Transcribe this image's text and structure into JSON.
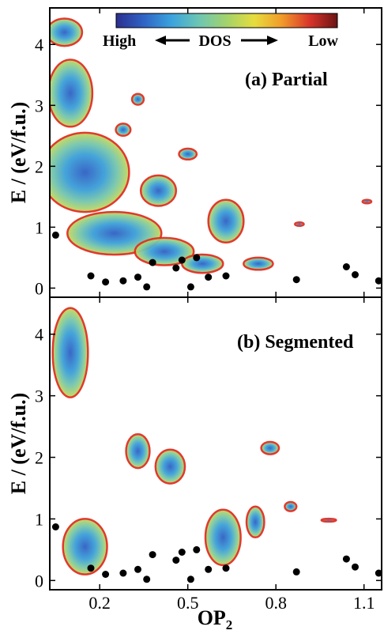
{
  "chart_data": {
    "type": "heatmap",
    "colorbar": {
      "high_label": "High",
      "mid_label": "DOS",
      "low_label": "Low",
      "colors": [
        "#2b2f8f",
        "#2f64c6",
        "#3aa3dd",
        "#6dc6b3",
        "#a4d36b",
        "#e6dd3d",
        "#f19a2a",
        "#d8342a",
        "#6b1414"
      ]
    },
    "xlabel_main": "OP",
    "xlabel_sub": "2",
    "xticks": [
      0.2,
      0.5,
      0.8,
      1.1
    ],
    "xlim": [
      0.03,
      1.16
    ],
    "panels": [
      {
        "id": "a",
        "title": "(a) Partial",
        "ylabel": "E / (eV/f.u.)",
        "yticks": [
          0,
          1,
          2,
          3,
          4
        ],
        "ylim": [
          -0.15,
          4.6
        ],
        "points": [
          [
            0.05,
            0.87
          ],
          [
            0.17,
            0.2
          ],
          [
            0.22,
            0.1
          ],
          [
            0.28,
            0.12
          ],
          [
            0.33,
            0.18
          ],
          [
            0.36,
            0.02
          ],
          [
            0.38,
            0.42
          ],
          [
            0.46,
            0.33
          ],
          [
            0.48,
            0.46
          ],
          [
            0.51,
            0.02
          ],
          [
            0.53,
            0.5
          ],
          [
            0.57,
            0.18
          ],
          [
            0.63,
            0.2
          ],
          [
            0.87,
            0.14
          ],
          [
            1.04,
            0.35
          ],
          [
            1.07,
            0.22
          ],
          [
            1.15,
            0.12
          ]
        ]
      },
      {
        "id": "b",
        "title": "(b) Segmented",
        "ylabel": "E / (eV/f.u.)",
        "yticks": [
          0,
          1,
          2,
          3,
          4
        ],
        "ylim": [
          -0.15,
          4.6
        ],
        "points": [
          [
            0.05,
            0.87
          ],
          [
            0.17,
            0.2
          ],
          [
            0.22,
            0.1
          ],
          [
            0.28,
            0.12
          ],
          [
            0.33,
            0.18
          ],
          [
            0.36,
            0.02
          ],
          [
            0.38,
            0.42
          ],
          [
            0.46,
            0.33
          ],
          [
            0.48,
            0.46
          ],
          [
            0.51,
            0.02
          ],
          [
            0.53,
            0.5
          ],
          [
            0.57,
            0.18
          ],
          [
            0.63,
            0.2
          ],
          [
            0.87,
            0.14
          ],
          [
            1.04,
            0.35
          ],
          [
            1.07,
            0.22
          ],
          [
            1.15,
            0.12
          ]
        ]
      }
    ]
  }
}
